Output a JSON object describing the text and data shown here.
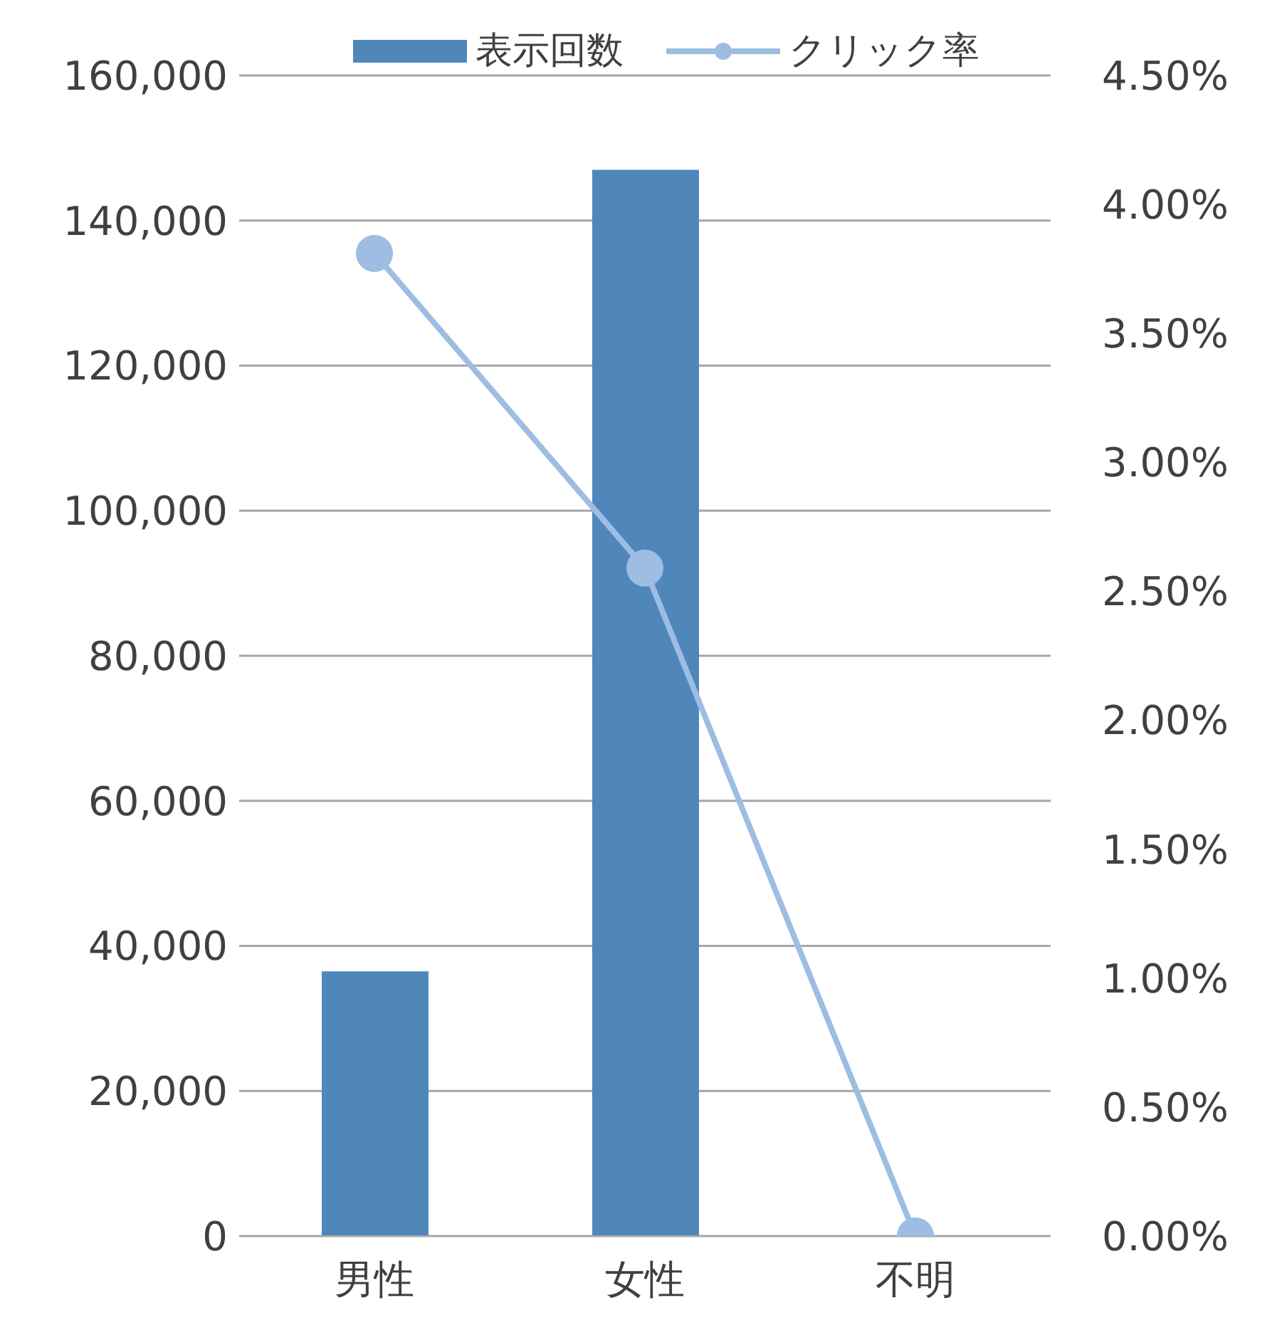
{
  "chart_data": {
    "type": "bar",
    "categories": [
      "男性",
      "女性",
      "不明"
    ],
    "series": [
      {
        "name": "表示回数",
        "color": "#4f87bb",
        "values": [
          36500,
          147000,
          0
        ]
      },
      {
        "name": "クリック率",
        "type": "line",
        "axis": "y2",
        "color": "#9dbde2",
        "values": [
          3.81,
          2.59,
          0
        ]
      }
    ],
    "ylim": [
      0,
      160000
    ],
    "yticks": [
      {
        "value": 0,
        "label": "0"
      },
      {
        "value": 20000,
        "label": "20,000"
      },
      {
        "value": 40000,
        "label": "40,000"
      },
      {
        "value": 60000,
        "label": "60,000"
      },
      {
        "value": 80000,
        "label": "80,000"
      },
      {
        "value": 100000,
        "label": "100,000"
      },
      {
        "value": 120000,
        "label": "120,000"
      },
      {
        "value": 140000,
        "label": "140,000"
      },
      {
        "value": 160000,
        "label": "160,000"
      }
    ],
    "y2lim": [
      0,
      4.5
    ],
    "y2ticks": [
      {
        "value": 0,
        "label": "0.00%"
      },
      {
        "value": 0.5,
        "label": "0.50%"
      },
      {
        "value": 1,
        "label": "1.00%"
      },
      {
        "value": 1.5,
        "label": "1.50%"
      },
      {
        "value": 2,
        "label": "2.00%"
      },
      {
        "value": 2.5,
        "label": "2.50%"
      },
      {
        "value": 3,
        "label": "3.00%"
      },
      {
        "value": 3.5,
        "label": "3.50%"
      },
      {
        "value": 4,
        "label": "4.00%"
      },
      {
        "value": 4.5,
        "label": "4.50%"
      }
    ],
    "grid": "y",
    "legend": "top",
    "marker": "circle",
    "line_style": "solid"
  }
}
